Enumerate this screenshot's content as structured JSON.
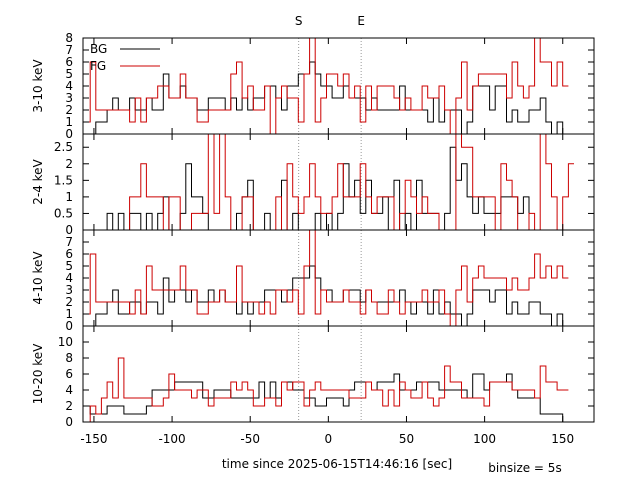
{
  "chart_data": {
    "type": "line",
    "step": true,
    "xlabel": "time since 2025-06-15T14:46:16 [sec]",
    "note": "binsize = 5s",
    "xlim": [
      -157,
      170
    ],
    "xticks": [
      -150,
      -100,
      -50,
      0,
      50,
      100,
      150
    ],
    "markers": [
      {
        "label": "S",
        "x": -19
      },
      {
        "label": "E",
        "x": 21
      }
    ],
    "legend": [
      {
        "name": "BG",
        "color": "#000000"
      },
      {
        "name": "FG",
        "color": "#cc0000"
      }
    ],
    "panels": [
      {
        "ylabel": "3-10 keV",
        "ylim": [
          0,
          8
        ],
        "yticks": [
          0,
          1,
          2,
          3,
          4,
          5,
          6,
          7,
          8
        ],
        "bg": [
          0,
          0,
          1,
          1,
          2,
          3,
          2,
          2,
          3,
          2,
          2,
          3,
          2,
          2,
          5,
          3,
          3,
          4,
          3,
          3,
          2,
          2,
          3,
          3,
          3,
          2,
          3,
          2,
          3,
          2,
          3,
          3,
          4,
          4,
          3,
          2,
          4,
          4,
          5,
          5,
          6,
          5,
          4,
          4,
          3,
          3,
          4,
          3,
          3,
          3,
          2,
          3,
          2,
          2,
          2,
          2,
          4,
          2,
          2,
          2,
          2,
          1,
          3,
          1,
          2,
          2,
          2,
          0,
          1,
          4,
          4,
          4,
          2,
          4,
          4,
          1,
          2,
          1,
          1,
          2,
          2,
          3,
          1,
          0,
          1,
          0
        ],
        "fg": [
          1,
          6,
          2,
          2,
          2,
          2,
          2,
          2,
          1,
          3,
          1,
          3,
          3,
          4,
          4,
          3,
          3,
          5,
          3,
          3,
          1,
          1,
          2,
          2,
          2,
          2,
          5,
          6,
          3,
          4,
          2,
          2,
          4,
          0,
          3,
          4,
          3,
          3,
          1,
          5,
          8,
          1,
          3,
          5,
          5,
          4,
          5,
          3,
          4,
          1,
          4,
          2,
          4,
          4,
          4,
          3,
          2,
          3,
          2,
          2,
          4,
          3,
          3,
          4,
          2,
          0,
          3,
          6,
          2,
          4,
          5,
          5,
          5,
          5,
          5,
          3,
          6,
          4,
          3,
          4,
          8,
          6,
          6,
          4,
          6,
          4
        ]
      },
      {
        "ylabel": "2-4 keV",
        "ylim": [
          0,
          2.9
        ],
        "yticks": [
          0,
          0.5,
          1,
          1.5,
          2,
          2.5
        ],
        "bg": [
          0,
          0,
          0,
          0,
          0.5,
          0,
          0.5,
          0,
          0.5,
          0.5,
          0,
          0.5,
          0,
          0.5,
          1,
          0,
          0,
          0.5,
          2,
          1,
          1,
          0.5,
          0,
          0,
          0,
          0,
          0,
          0.5,
          1,
          1.5,
          0,
          0,
          0.5,
          0,
          0,
          1.5,
          0,
          0.5,
          0,
          0,
          0,
          0.5,
          0,
          0.5,
          0,
          0.5,
          2,
          1,
          1.5,
          0.5,
          1.5,
          0.5,
          0.5,
          1,
          0,
          1.5,
          0,
          0.5,
          0,
          1.5,
          0.5,
          0.5,
          0.5,
          0,
          0.5,
          2.5,
          1.5,
          2,
          1,
          0.5,
          1,
          0.5,
          0.5,
          0.5,
          1,
          1,
          1,
          0.5,
          1,
          0,
          0,
          0,
          0,
          0,
          0,
          0
        ],
        "fg": [
          0,
          0,
          0,
          0,
          0,
          0,
          0,
          0,
          1,
          1,
          2,
          1,
          1,
          1,
          0,
          1,
          1,
          0,
          0,
          0.5,
          0.5,
          0.5,
          3,
          0.5,
          3,
          1,
          0,
          0,
          1,
          1,
          0,
          0,
          0,
          0,
          1,
          0,
          2,
          1,
          0.5,
          1,
          2,
          1,
          0.5,
          0.5,
          1,
          2,
          1,
          1,
          1,
          2,
          1,
          0.5,
          1,
          1,
          1,
          0,
          0.5,
          1.5,
          1,
          0.5,
          1,
          0.5,
          0.5,
          0,
          0,
          0,
          3,
          2.5,
          2.5,
          1,
          1,
          1,
          1,
          0,
          2,
          1.5,
          1,
          0,
          0,
          0.5,
          0,
          3,
          2,
          1,
          0,
          1,
          2
        ]
      },
      {
        "ylabel": "4-10 keV",
        "ylim": [
          0,
          8
        ],
        "yticks": [
          0,
          1,
          2,
          3,
          4,
          5,
          6,
          7
        ],
        "bg": [
          0,
          0,
          1,
          1,
          2,
          3,
          1,
          1,
          2,
          2,
          1,
          2,
          2,
          1,
          4,
          2,
          3,
          3,
          2,
          3,
          2,
          2,
          3,
          2,
          3,
          2,
          2,
          1,
          2,
          1,
          2,
          2,
          3,
          3,
          3,
          2,
          3,
          4,
          4,
          4,
          5,
          4,
          3,
          3,
          2,
          2,
          3,
          3,
          3,
          2,
          3,
          2,
          2,
          2,
          2,
          2,
          3,
          2,
          1,
          2,
          2,
          1,
          3,
          1,
          2,
          1,
          1,
          0,
          1,
          3,
          3,
          3,
          2,
          3,
          3,
          1,
          2,
          1,
          1,
          2,
          2,
          1,
          1,
          0,
          1,
          0
        ],
        "fg": [
          1,
          6,
          2,
          2,
          2,
          2,
          2,
          2,
          1,
          3,
          1,
          5,
          3,
          3,
          3,
          3,
          3,
          5,
          3,
          3,
          1,
          1,
          2,
          2,
          3,
          2,
          2,
          5,
          2,
          2,
          2,
          1,
          2,
          1,
          3,
          3,
          2,
          3,
          1,
          5,
          8,
          1,
          3,
          2,
          2,
          2,
          3,
          2,
          2,
          1,
          3,
          2,
          1,
          1,
          3,
          2,
          1,
          2,
          2,
          2,
          3,
          2,
          2,
          3,
          1,
          0,
          3,
          5,
          2,
          4,
          5,
          4,
          4,
          4,
          4,
          3,
          4,
          3,
          3,
          4,
          6,
          4,
          5,
          4,
          5,
          4
        ]
      },
      {
        "ylabel": "10-20 keV",
        "ylim": [
          0,
          12
        ],
        "yticks": [
          0,
          2,
          4,
          6,
          8,
          10
        ],
        "bg": [
          2,
          1,
          1,
          1,
          2,
          2,
          2,
          1,
          1,
          1,
          1,
          2,
          4,
          4,
          4,
          4,
          5,
          5,
          5,
          5,
          5,
          3,
          3,
          4,
          4,
          4,
          3,
          3,
          3,
          3,
          3,
          5,
          3,
          5,
          3,
          5,
          5,
          4,
          4,
          3,
          3,
          2,
          2,
          3,
          3,
          3,
          2,
          4,
          5,
          5,
          5,
          4,
          5,
          5,
          5,
          6,
          4,
          4,
          4,
          5,
          5,
          5,
          5,
          4,
          4,
          4,
          4,
          4,
          3,
          6,
          6,
          4,
          5,
          5,
          5,
          6,
          4,
          3,
          3,
          3,
          3,
          1,
          1,
          1,
          1,
          0
        ],
        "fg": [
          0,
          2,
          1,
          3,
          5,
          3,
          8,
          3,
          3,
          3,
          3,
          3,
          2,
          2,
          3,
          6,
          4,
          4,
          4,
          3,
          4,
          4,
          2,
          3,
          3,
          3,
          5,
          4,
          5,
          4,
          2,
          2,
          3,
          3,
          2,
          5,
          4,
          5,
          5,
          2,
          4,
          5,
          4,
          4,
          4,
          4,
          4,
          3,
          3,
          3,
          5,
          4,
          4,
          2,
          4,
          2,
          5,
          4,
          3,
          3,
          5,
          3,
          2,
          3,
          7,
          5,
          5,
          3,
          3,
          3,
          3,
          2,
          5,
          5,
          5,
          5,
          4,
          4,
          4,
          4,
          3,
          7,
          5,
          5,
          4,
          4
        ]
      }
    ]
  }
}
